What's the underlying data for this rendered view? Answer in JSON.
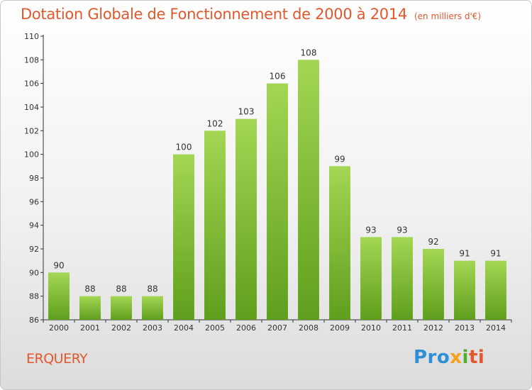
{
  "chart_data": {
    "type": "bar",
    "title": "Dotation Globale de Fonctionnement de 2000 à 2014",
    "subtitle": "(en milliers d'€)",
    "categories": [
      "2000",
      "2001",
      "2002",
      "2003",
      "2004",
      "2005",
      "2006",
      "2007",
      "2008",
      "2009",
      "2010",
      "2011",
      "2012",
      "2013",
      "2014"
    ],
    "values": [
      90,
      88,
      88,
      88,
      100,
      102,
      103,
      106,
      108,
      99,
      93,
      93,
      92,
      91,
      91
    ],
    "ylim": [
      86,
      110
    ],
    "yticks": [
      86,
      88,
      90,
      92,
      94,
      96,
      98,
      100,
      102,
      104,
      106,
      108,
      110
    ],
    "grid": false,
    "bar_color": "#7dbf32",
    "bar_color_light": "#a3d653",
    "bar_color_dark": "#5f9f1d"
  },
  "footer": {
    "commune": "ERQUERY",
    "logo": [
      "Pro",
      "x",
      "i",
      "ti"
    ]
  },
  "colors": {
    "title": "#e2582d",
    "axis": "#333333"
  }
}
